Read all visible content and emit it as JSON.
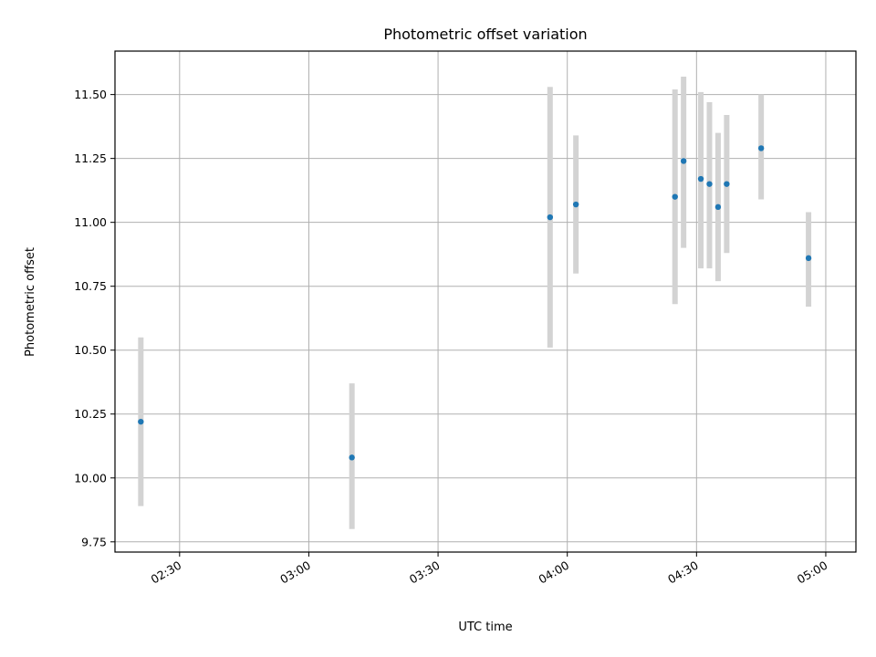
{
  "chart_data": {
    "type": "scatter",
    "title": "Photometric offset variation",
    "xlabel": "UTC time",
    "ylabel": "Photometric offset",
    "x_unit": "UTC time (HH:MM)",
    "xlim": [
      "02:15",
      "05:07"
    ],
    "ylim": [
      9.71,
      11.67
    ],
    "xticks": [
      "02:30",
      "03:00",
      "03:30",
      "04:00",
      "04:30",
      "05:00"
    ],
    "yticks": [
      9.75,
      10.0,
      10.25,
      10.5,
      10.75,
      11.0,
      11.25,
      11.5
    ],
    "ytick_labels": [
      "9.75",
      "10.00",
      "10.25",
      "10.50",
      "10.75",
      "11.00",
      "11.25",
      "11.50"
    ],
    "grid": true,
    "colors": {
      "points": "#1f77b4",
      "errorbars": "#d3d3d3",
      "grid": "#b0b0b0"
    },
    "series": [
      {
        "points": [
          {
            "x": "02:21",
            "y": 10.22,
            "ymin": 9.89,
            "ymax": 10.55
          },
          {
            "x": "03:10",
            "y": 10.08,
            "ymin": 9.8,
            "ymax": 10.37
          },
          {
            "x": "03:56",
            "y": 11.02,
            "ymin": 10.51,
            "ymax": 11.53
          },
          {
            "x": "04:02",
            "y": 11.07,
            "ymin": 10.8,
            "ymax": 11.34
          },
          {
            "x": "04:25",
            "y": 11.1,
            "ymin": 10.68,
            "ymax": 11.52
          },
          {
            "x": "04:27",
            "y": 11.24,
            "ymin": 10.9,
            "ymax": 11.57
          },
          {
            "x": "04:31",
            "y": 11.17,
            "ymin": 10.82,
            "ymax": 11.51
          },
          {
            "x": "04:33",
            "y": 11.15,
            "ymin": 10.82,
            "ymax": 11.47
          },
          {
            "x": "04:35",
            "y": 11.06,
            "ymin": 10.77,
            "ymax": 11.35
          },
          {
            "x": "04:37",
            "y": 11.15,
            "ymin": 10.88,
            "ymax": 11.42
          },
          {
            "x": "04:45",
            "y": 11.29,
            "ymin": 11.09,
            "ymax": 11.5
          },
          {
            "x": "04:56",
            "y": 10.86,
            "ymin": 10.67,
            "ymax": 11.04
          }
        ]
      }
    ]
  }
}
